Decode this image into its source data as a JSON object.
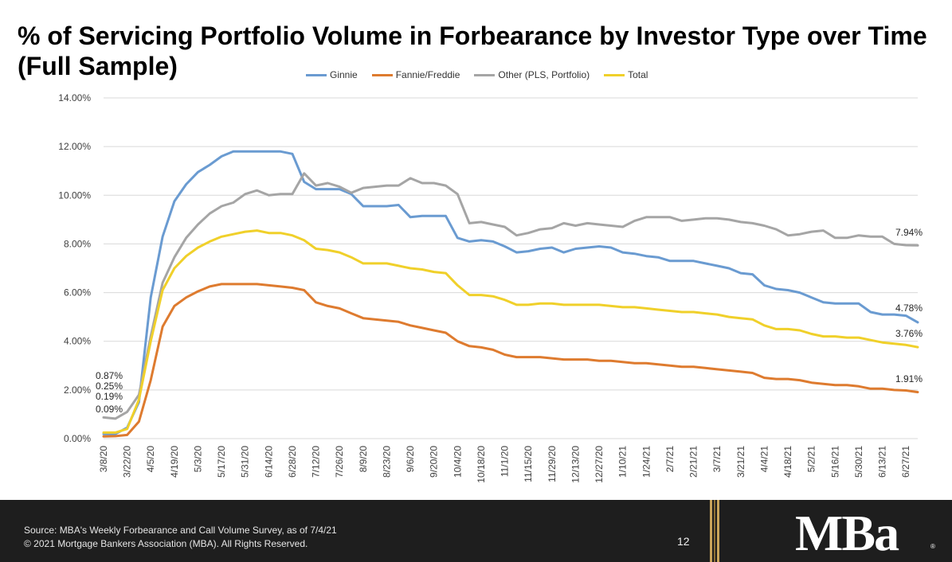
{
  "title": "% of Servicing Portfolio Volume in Forbearance by Investor Type over Time (Full Sample)",
  "footer": {
    "source": "Source: MBA's Weekly Forbearance and Call Volume Survey, as of 7/4/21",
    "copyright": "© 2021 Mortgage Bankers Association (MBA). All Rights Reserved.",
    "page_number": "12",
    "logo_text": "MBa",
    "logo_mark": "®"
  },
  "chart_data": {
    "type": "line",
    "title": "% of Servicing Portfolio Volume in Forbearance by Investor Type over Time (Full Sample)",
    "xlabel": "",
    "ylabel": "",
    "ylim": [
      0,
      14
    ],
    "yticks": [
      "0.00%",
      "2.00%",
      "4.00%",
      "6.00%",
      "8.00%",
      "10.00%",
      "12.00%",
      "14.00%"
    ],
    "grid": true,
    "legend_position": "top",
    "x_tick_labels": [
      "3/8/20",
      "3/22/20",
      "4/5/20",
      "4/19/20",
      "5/3/20",
      "5/17/20",
      "5/31/20",
      "6/14/20",
      "6/28/20",
      "7/12/20",
      "7/26/20",
      "8/9/20",
      "8/23/20",
      "9/6/20",
      "9/20/20",
      "10/4/20",
      "10/18/20",
      "11/1/20",
      "11/15/20",
      "11/29/20",
      "12/13/20",
      "12/27/20",
      "1/10/21",
      "1/24/21",
      "2/7/21",
      "2/21/21",
      "3/7/21",
      "3/21/21",
      "4/4/21",
      "4/18/21",
      "5/2/21",
      "5/16/21",
      "5/30/21",
      "6/13/21",
      "6/27/21"
    ],
    "series": [
      {
        "name": "Ginnie",
        "color": "#6a9bd1",
        "values": [
          0.19,
          0.19,
          0.45,
          1.5,
          5.8,
          8.3,
          9.75,
          10.45,
          10.95,
          11.25,
          11.6,
          11.8,
          11.8,
          11.8,
          11.8,
          11.8,
          11.7,
          10.55,
          10.25,
          10.25,
          10.25,
          10.05,
          9.55,
          9.55,
          9.55,
          9.6,
          9.1,
          9.15,
          9.15,
          9.15,
          8.25,
          8.1,
          8.15,
          8.1,
          7.9,
          7.65,
          7.7,
          7.8,
          7.85,
          7.65,
          7.8,
          7.85,
          7.9,
          7.85,
          7.65,
          7.6,
          7.5,
          7.45,
          7.3,
          7.3,
          7.3,
          7.2,
          7.1,
          7.0,
          6.8,
          6.75,
          6.3,
          6.15,
          6.1,
          6.0,
          5.8,
          5.6,
          5.55,
          5.55,
          5.55,
          5.2,
          5.1,
          5.1,
          5.05,
          4.78
        ],
        "end_label": "4.78%",
        "start_label": "0.19%"
      },
      {
        "name": "Fannie/Freddie",
        "color": "#de7b2f",
        "values": [
          0.09,
          0.1,
          0.15,
          0.7,
          2.4,
          4.6,
          5.45,
          5.8,
          6.05,
          6.25,
          6.35,
          6.35,
          6.35,
          6.35,
          6.3,
          6.25,
          6.2,
          6.1,
          5.6,
          5.45,
          5.35,
          5.15,
          4.95,
          4.9,
          4.85,
          4.8,
          4.65,
          4.55,
          4.45,
          4.35,
          4.0,
          3.8,
          3.75,
          3.65,
          3.45,
          3.35,
          3.35,
          3.35,
          3.3,
          3.25,
          3.25,
          3.25,
          3.2,
          3.2,
          3.15,
          3.1,
          3.1,
          3.05,
          3.0,
          2.95,
          2.95,
          2.9,
          2.85,
          2.8,
          2.75,
          2.7,
          2.5,
          2.45,
          2.45,
          2.4,
          2.3,
          2.25,
          2.2,
          2.2,
          2.15,
          2.05,
          2.05,
          2.0,
          1.98,
          1.91
        ],
        "end_label": "1.91%",
        "start_label": "0.09%"
      },
      {
        "name": "Other (PLS, Portfolio)",
        "color": "#a5a5a5",
        "values": [
          0.87,
          0.82,
          1.1,
          1.8,
          4.2,
          6.4,
          7.45,
          8.25,
          8.8,
          9.25,
          9.55,
          9.7,
          10.05,
          10.2,
          10.0,
          10.05,
          10.05,
          10.9,
          10.4,
          10.5,
          10.35,
          10.1,
          10.3,
          10.35,
          10.4,
          10.4,
          10.7,
          10.5,
          10.5,
          10.4,
          10.05,
          8.85,
          8.9,
          8.8,
          8.7,
          8.35,
          8.45,
          8.6,
          8.65,
          8.85,
          8.75,
          8.85,
          8.8,
          8.75,
          8.7,
          8.95,
          9.1,
          9.1,
          9.1,
          8.95,
          9.0,
          9.05,
          9.05,
          9.0,
          8.9,
          8.85,
          8.75,
          8.6,
          8.35,
          8.4,
          8.5,
          8.55,
          8.25,
          8.25,
          8.35,
          8.3,
          8.3,
          8.0,
          7.95,
          7.94
        ],
        "end_label": "7.94%",
        "start_label": "0.87%"
      },
      {
        "name": "Total",
        "color": "#f0d02a",
        "values": [
          0.25,
          0.25,
          0.4,
          1.6,
          4.0,
          6.1,
          7.0,
          7.5,
          7.85,
          8.1,
          8.3,
          8.4,
          8.5,
          8.55,
          8.45,
          8.45,
          8.35,
          8.15,
          7.8,
          7.75,
          7.65,
          7.45,
          7.2,
          7.2,
          7.2,
          7.1,
          7.0,
          6.95,
          6.85,
          6.8,
          6.3,
          5.9,
          5.9,
          5.85,
          5.7,
          5.5,
          5.5,
          5.55,
          5.55,
          5.5,
          5.5,
          5.5,
          5.5,
          5.45,
          5.4,
          5.4,
          5.35,
          5.3,
          5.25,
          5.2,
          5.2,
          5.15,
          5.1,
          5.0,
          4.95,
          4.9,
          4.65,
          4.5,
          4.5,
          4.45,
          4.3,
          4.2,
          4.2,
          4.15,
          4.15,
          4.05,
          3.95,
          3.9,
          3.85,
          3.76
        ],
        "end_label": "3.76%",
        "start_label": "0.25%"
      }
    ]
  }
}
